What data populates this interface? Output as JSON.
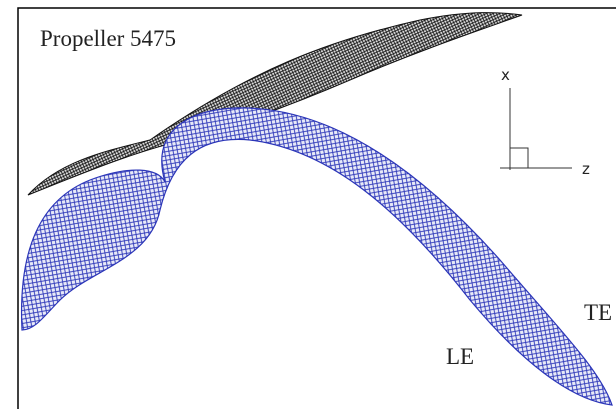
{
  "title": "Propeller 5475",
  "axes": {
    "x_label": "x",
    "z_label": "z"
  },
  "labels": {
    "leading_edge": "LE",
    "trailing_edge": "TE"
  }
}
